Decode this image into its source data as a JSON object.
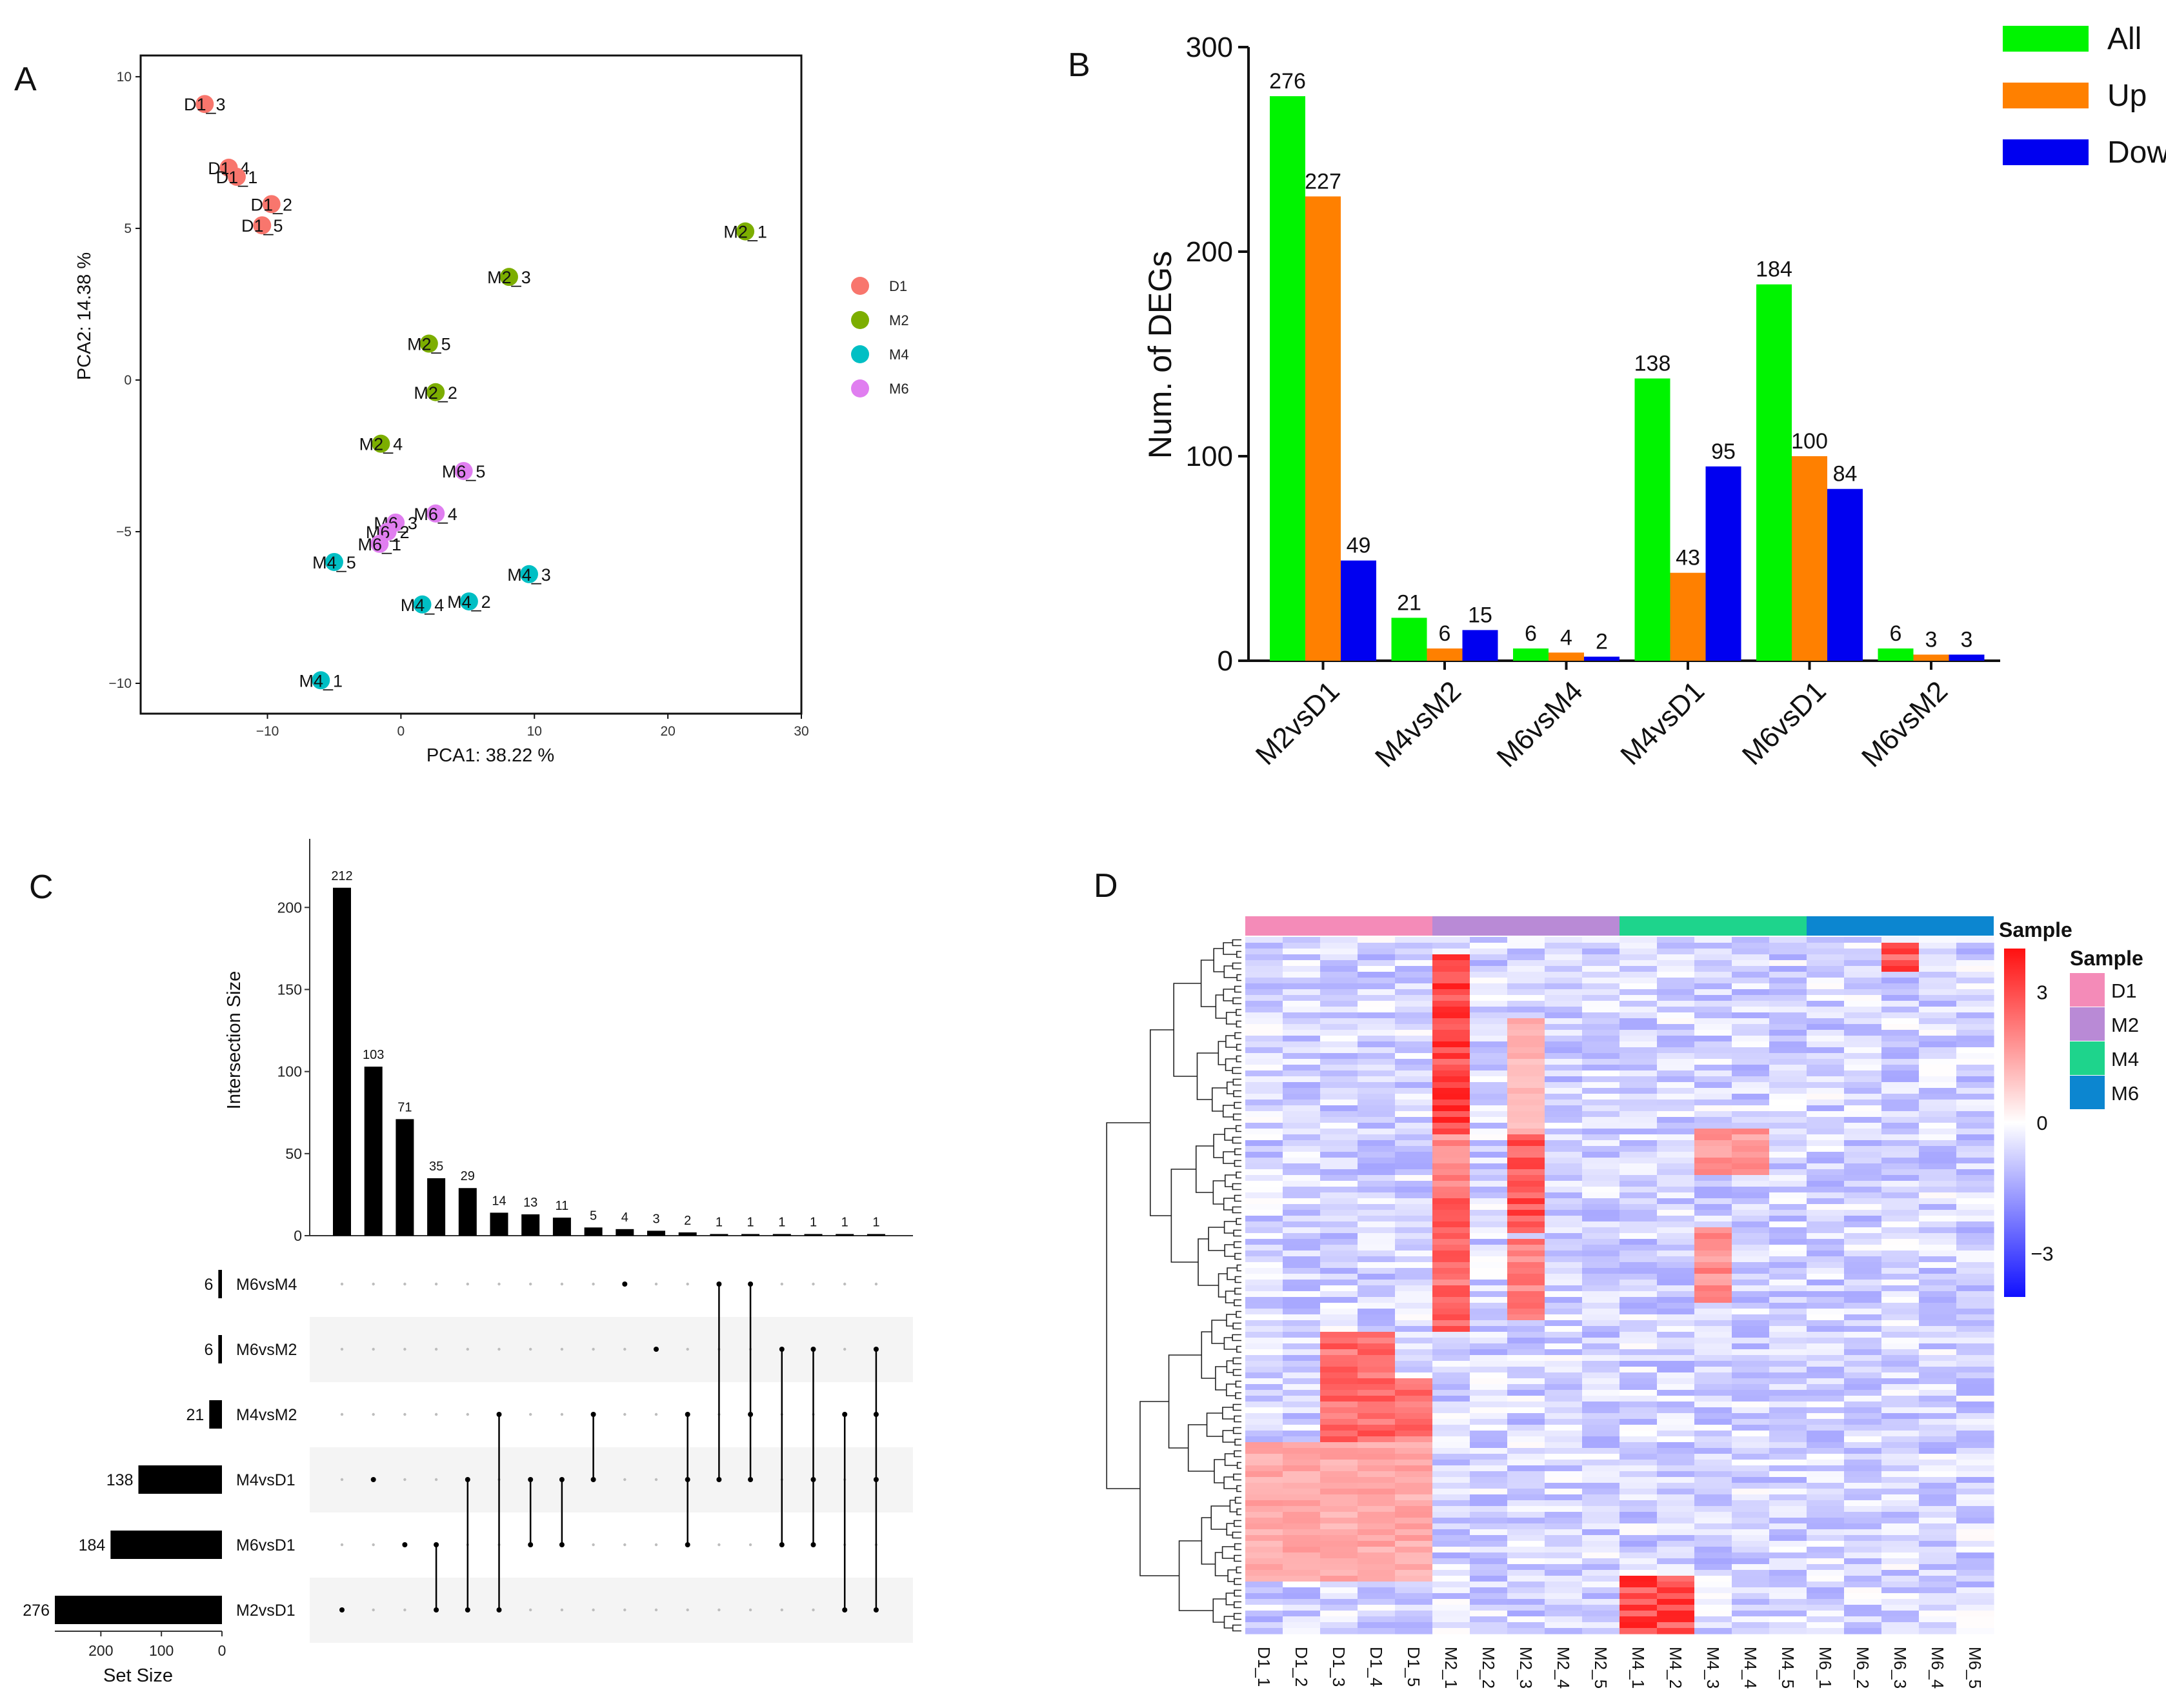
{
  "panels": {
    "a": "A",
    "b": "B",
    "c": "C",
    "d": "D"
  },
  "chart_data": [
    {
      "type": "scatter",
      "panel": "A",
      "xlabel": "PCA1: 38.22 %",
      "ylabel": "PCA2: 14.38 %",
      "xlim": [
        -19.5,
        30
      ],
      "ylim": [
        -11,
        10.7
      ],
      "xticks": [
        {
          "v": -10,
          "label": "−10"
        },
        {
          "v": 0,
          "label": "0"
        },
        {
          "v": 10,
          "label": "10"
        },
        {
          "v": 20,
          "label": "20"
        },
        {
          "v": 30,
          "label": "30"
        }
      ],
      "yticks": [
        {
          "v": -10,
          "label": "−10"
        },
        {
          "v": -5,
          "label": "−5"
        },
        {
          "v": 0,
          "label": "0"
        },
        {
          "v": 5,
          "label": "5"
        },
        {
          "v": 10,
          "label": "10"
        }
      ],
      "groups": [
        {
          "name": "D1",
          "color": "#F8766D"
        },
        {
          "name": "M2",
          "color": "#7CAE00"
        },
        {
          "name": "M4",
          "color": "#00BFC4"
        },
        {
          "name": "M6",
          "color": "#E07EF0"
        }
      ],
      "points": [
        {
          "label": "D1_3",
          "group": "D1",
          "x": -14.7,
          "y": 9.1
        },
        {
          "label": "D1_4",
          "group": "D1",
          "x": -12.9,
          "y": 7.0
        },
        {
          "label": "D1_1",
          "group": "D1",
          "x": -12.3,
          "y": 6.7
        },
        {
          "label": "D1_2",
          "group": "D1",
          "x": -9.7,
          "y": 5.8
        },
        {
          "label": "D1_5",
          "group": "D1",
          "x": -10.4,
          "y": 5.1
        },
        {
          "label": "M2_1",
          "group": "M2",
          "x": 25.8,
          "y": 4.9
        },
        {
          "label": "M2_3",
          "group": "M2",
          "x": 8.1,
          "y": 3.4
        },
        {
          "label": "M2_5",
          "group": "M2",
          "x": 2.1,
          "y": 1.2
        },
        {
          "label": "M2_2",
          "group": "M2",
          "x": 2.6,
          "y": -0.4
        },
        {
          "label": "M2_4",
          "group": "M2",
          "x": -1.5,
          "y": -2.1
        },
        {
          "label": "M6_5",
          "group": "M6",
          "x": 4.7,
          "y": -3.0
        },
        {
          "label": "M6_4",
          "group": "M6",
          "x": 2.6,
          "y": -4.4
        },
        {
          "label": "M6_3",
          "group": "M6",
          "x": -0.4,
          "y": -4.7
        },
        {
          "label": "M6_2",
          "group": "M6",
          "x": -1.0,
          "y": -5.0
        },
        {
          "label": "M6_1",
          "group": "M6",
          "x": -1.6,
          "y": -5.4
        },
        {
          "label": "M4_5",
          "group": "M4",
          "x": -5.0,
          "y": -6.0
        },
        {
          "label": "M4_3",
          "group": "M4",
          "x": 9.6,
          "y": -6.4
        },
        {
          "label": "M4_4",
          "group": "M4",
          "x": 1.6,
          "y": -7.4
        },
        {
          "label": "M4_2",
          "group": "M4",
          "x": 5.1,
          "y": -7.3
        },
        {
          "label": "M4_1",
          "group": "M4",
          "x": -6.0,
          "y": -9.9
        }
      ]
    },
    {
      "type": "bar",
      "panel": "B",
      "ylabel": "Num. of DEGs",
      "ylim": [
        0,
        300
      ],
      "yticks": [
        0,
        100,
        200,
        300
      ],
      "categories": [
        "M2vsD1",
        "M4vsM2",
        "M6vsM4",
        "M4vsD1",
        "M6vsD1",
        "M6vsM2"
      ],
      "series": [
        {
          "name": "All",
          "color": "#00F400",
          "values": [
            276,
            21,
            6,
            138,
            184,
            6
          ]
        },
        {
          "name": "Up",
          "color": "#FF8000",
          "values": [
            227,
            6,
            4,
            43,
            100,
            3
          ]
        },
        {
          "name": "Down",
          "color": "#0000F0",
          "values": [
            49,
            15,
            2,
            95,
            84,
            3
          ]
        }
      ],
      "legend": "top-right"
    },
    {
      "type": "upset",
      "panel": "C",
      "ylabel": "Intersection Size",
      "yticks": [
        0,
        50,
        100,
        150,
        200
      ],
      "ylim": [
        0,
        230
      ],
      "intersection_sizes": [
        212,
        103,
        71,
        35,
        29,
        14,
        13,
        11,
        5,
        4,
        3,
        2,
        1,
        1,
        1,
        1,
        1,
        1
      ],
      "sets": [
        "M6vsM4",
        "M6vsM2",
        "M4vsM2",
        "M4vsD1",
        "M6vsD1",
        "M2vsD1"
      ],
      "set_sizes": [
        6,
        6,
        21,
        138,
        184,
        276
      ],
      "set_size_label": "Set Size",
      "set_size_ticks": [
        {
          "v": 200,
          "label": "200"
        },
        {
          "v": 100,
          "label": "100"
        },
        {
          "v": 0,
          "label": "0"
        }
      ],
      "memberships": [
        [
          5
        ],
        [
          3
        ],
        [
          4
        ],
        [
          4,
          5
        ],
        [
          3,
          5
        ],
        [
          2,
          5
        ],
        [
          3,
          4
        ],
        [
          3,
          4
        ],
        [
          2,
          3
        ],
        [
          0
        ],
        [
          1
        ],
        [
          2,
          3,
          4
        ],
        [
          0,
          3
        ],
        [
          0,
          2,
          3
        ],
        [
          1,
          4
        ],
        [
          1,
          3,
          4
        ],
        [
          2,
          5
        ],
        [
          1,
          2,
          3,
          5
        ]
      ]
    },
    {
      "type": "heatmap",
      "panel": "D",
      "columns": [
        "D1_1",
        "D1_2",
        "D1_3",
        "D1_4",
        "D1_5",
        "M2_1",
        "M2_2",
        "M2_3",
        "M2_4",
        "M2_5",
        "M4_1",
        "M4_2",
        "M4_3",
        "M4_4",
        "M4_5",
        "M6_1",
        "M6_2",
        "M6_3",
        "M6_4",
        "M6_5"
      ],
      "sample_groups": [
        {
          "name": "D1",
          "color": "#F48BB8"
        },
        {
          "name": "M2",
          "color": "#B98AD6"
        },
        {
          "name": "M4",
          "color": "#1ED48C"
        },
        {
          "name": "M6",
          "color": "#0C86D0"
        }
      ],
      "annotation_title": "Sample",
      "legend_title": "Sample",
      "color_scale": {
        "low": "#1010FF",
        "mid": "#FFFFFF",
        "high": "#FF1010",
        "range": [
          -4,
          4
        ]
      },
      "scale_ticks": [
        {
          "v": 3,
          "label": "3"
        },
        {
          "v": 0,
          "label": "0"
        },
        {
          "v": -3,
          "label": "−3"
        }
      ],
      "row_blocks": [
        {
          "row_start": 0.03,
          "row_end": 0.28,
          "col_start": 5,
          "col_end": 6,
          "intensity": 3.2
        },
        {
          "row_start": 0.29,
          "row_end": 0.37,
          "col_start": 5,
          "col_end": 6,
          "intensity": 2.0
        },
        {
          "row_start": 0.38,
          "row_end": 0.56,
          "col_start": 5,
          "col_end": 6,
          "intensity": 2.6
        },
        {
          "row_start": 0.29,
          "row_end": 0.42,
          "col_start": 7,
          "col_end": 8,
          "intensity": 3.0
        },
        {
          "row_start": 0.12,
          "row_end": 0.28,
          "col_start": 7,
          "col_end": 8,
          "intensity": 1.3
        },
        {
          "row_start": 0.44,
          "row_end": 0.55,
          "col_start": 7,
          "col_end": 8,
          "intensity": 2.2
        },
        {
          "row_start": 0.57,
          "row_end": 0.72,
          "col_start": 2,
          "col_end": 4,
          "intensity": 2.6
        },
        {
          "row_start": 0.64,
          "row_end": 0.73,
          "col_start": 4,
          "col_end": 5,
          "intensity": 2.4
        },
        {
          "row_start": 0.73,
          "row_end": 0.92,
          "col_start": 0,
          "col_end": 5,
          "intensity": 1.5
        },
        {
          "row_start": 0.92,
          "row_end": 1.0,
          "col_start": 10,
          "col_end": 12,
          "intensity": 3.2
        },
        {
          "row_start": 0.01,
          "row_end": 0.05,
          "col_start": 17,
          "col_end": 18,
          "intensity": 3.0
        },
        {
          "row_start": 0.28,
          "row_end": 0.34,
          "col_start": 12,
          "col_end": 14,
          "intensity": 1.8
        },
        {
          "row_start": 0.42,
          "row_end": 0.52,
          "col_start": 12,
          "col_end": 13,
          "intensity": 2.0
        }
      ]
    }
  ]
}
